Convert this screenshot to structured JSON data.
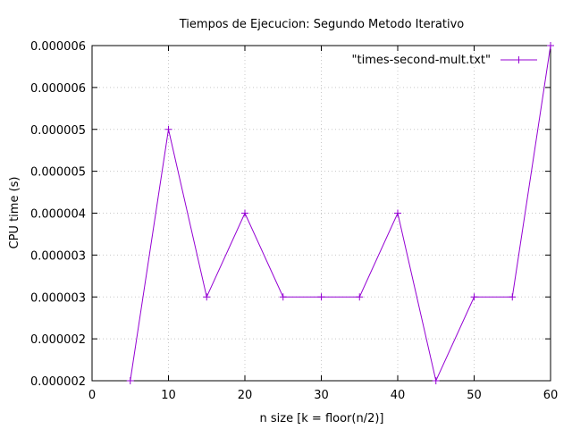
{
  "chart_data": {
    "type": "line",
    "title": "Tiempos de Ejecucion: Segundo Metodo Iterativo",
    "xlabel": "n size [k = floor(n/2)]",
    "ylabel": "CPU time (s)",
    "xlim": [
      0,
      60
    ],
    "ylim": [
      2e-06,
      6e-06
    ],
    "xticks": [
      "0",
      "10",
      "20",
      "30",
      "40",
      "50",
      "60"
    ],
    "yticks": [
      "0.000002",
      "0.000002",
      "0.000003",
      "0.000003",
      "0.000004",
      "0.000005",
      "0.000005",
      "0.000006",
      "0.000006"
    ],
    "grid": true,
    "legend_position": "top-right",
    "series": [
      {
        "name": "\"times-second-mult.txt\"",
        "color": "#9400d3",
        "marker": "plus",
        "x": [
          5,
          10,
          15,
          20,
          25,
          30,
          35,
          40,
          45,
          50,
          55,
          60
        ],
        "y": [
          2e-06,
          5e-06,
          3e-06,
          4e-06,
          3e-06,
          3e-06,
          3e-06,
          4e-06,
          2e-06,
          3e-06,
          3e-06,
          6e-06
        ]
      }
    ]
  }
}
